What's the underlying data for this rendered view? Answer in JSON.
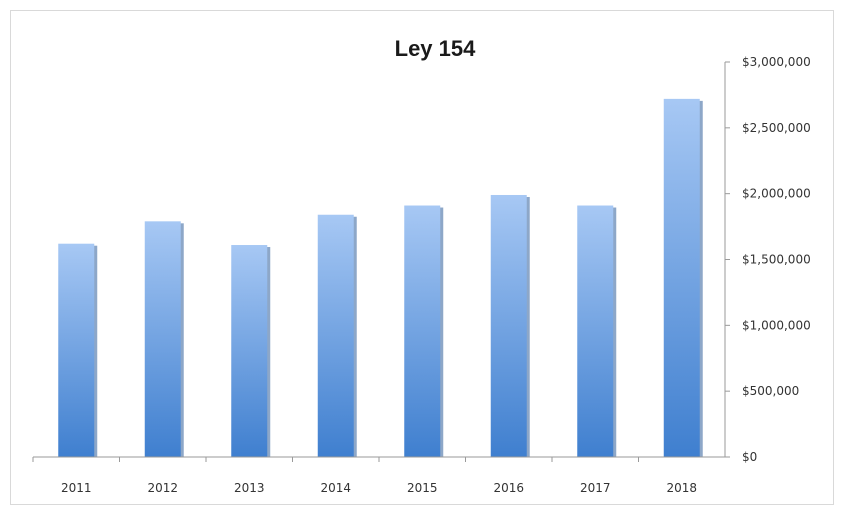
{
  "chart_data": {
    "type": "bar",
    "title": "Ley 154",
    "xlabel": "",
    "ylabel": "",
    "categories": [
      "2011",
      "2012",
      "2013",
      "2014",
      "2015",
      "2016",
      "2017",
      "2018"
    ],
    "values": [
      1620000,
      1790000,
      1610000,
      1840000,
      1910000,
      1990000,
      1910000,
      2720000
    ],
    "ylim": [
      0,
      3000000
    ],
    "yticks": [
      0,
      500000,
      1000000,
      1500000,
      2000000,
      2500000,
      3000000
    ],
    "ytick_labels": [
      "$0",
      "$500,000",
      "$1,000,000",
      "$1,500,000",
      "$2,000,000",
      "$2,500,000",
      "$3,000,000"
    ],
    "y_axis_side": "right",
    "grid": false,
    "legend": "none",
    "colors": {
      "bar_top": "#a7c8f4",
      "bar_bottom": "#3f7fcf",
      "bar_shadow": "#2f5f9a",
      "axis": "#9a9a9a"
    }
  }
}
